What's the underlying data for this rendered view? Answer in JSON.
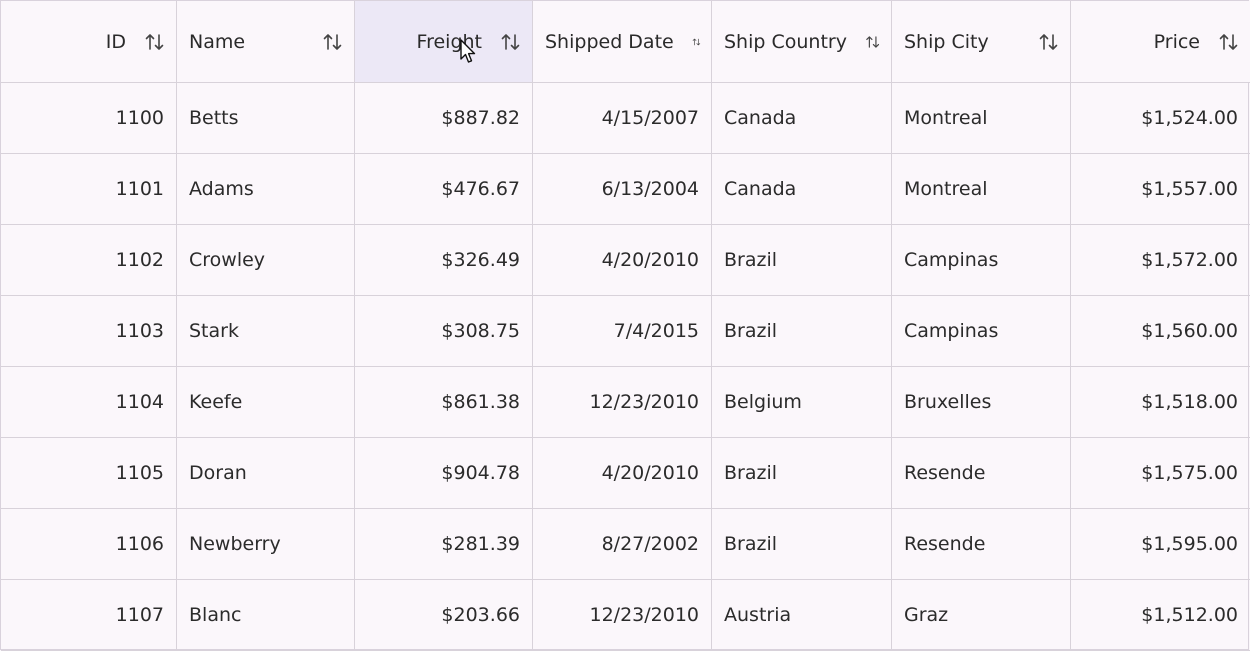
{
  "columns": [
    {
      "label": "ID",
      "align": "right"
    },
    {
      "label": "Name",
      "align": "left"
    },
    {
      "label": "Freight",
      "align": "right"
    },
    {
      "label": "Shipped Date",
      "align": "left"
    },
    {
      "label": "Ship Country",
      "align": "left"
    },
    {
      "label": "Ship City",
      "align": "left"
    },
    {
      "label": "Price",
      "align": "right"
    }
  ],
  "rows": [
    [
      "1100",
      "Betts",
      "$887.82",
      "4/15/2007",
      "Canada",
      "Montreal",
      "$1,524.00"
    ],
    [
      "1101",
      "Adams",
      "$476.67",
      "6/13/2004",
      "Canada",
      "Montreal",
      "$1,557.00"
    ],
    [
      "1102",
      "Crowley",
      "$326.49",
      "4/20/2010",
      "Brazil",
      "Campinas",
      "$1,572.00"
    ],
    [
      "1103",
      "Stark",
      "$308.75",
      "7/4/2015",
      "Brazil",
      "Campinas",
      "$1,560.00"
    ],
    [
      "1104",
      "Keefe",
      "$861.38",
      "12/23/2010",
      "Belgium",
      "Bruxelles",
      "$1,518.00"
    ],
    [
      "1105",
      "Doran",
      "$904.78",
      "4/20/2010",
      "Brazil",
      "Resende",
      "$1,575.00"
    ],
    [
      "1106",
      "Newberry",
      "$281.39",
      "8/27/2002",
      "Brazil",
      "Resende",
      "$1,595.00"
    ],
    [
      "1107",
      "Blanc",
      "$203.66",
      "12/23/2010",
      "Austria",
      "Graz",
      "$1,512.00"
    ]
  ],
  "icons": {
    "sort": "sort-arrows-icon",
    "cursor": "mouse-pointer-icon"
  },
  "colors": {
    "background": "#fbf7fb",
    "hovered_header": "#ece8f6",
    "border": "#d8d2da"
  }
}
